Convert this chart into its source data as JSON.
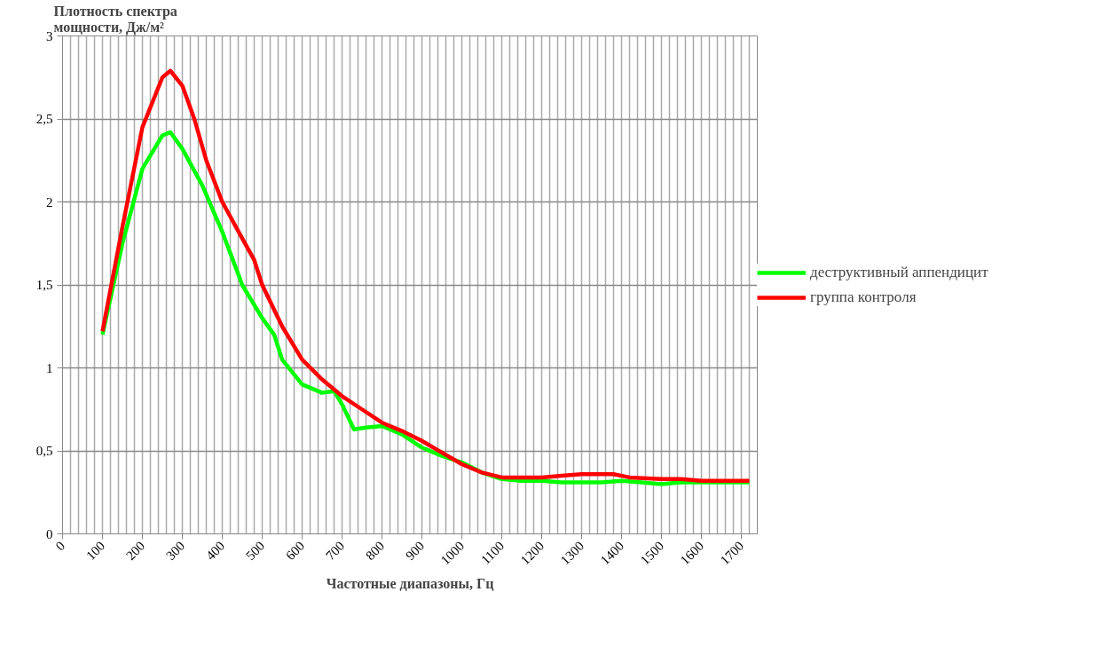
{
  "chart_data": {
    "type": "line",
    "ylabel": "Плотность спектра\nмощности, Дж/м²",
    "xlabel": "Частотные диапазоны, Гц",
    "xlim": [
      0,
      1740
    ],
    "xticks": [
      0,
      100,
      200,
      300,
      400,
      500,
      600,
      700,
      800,
      900,
      1000,
      1100,
      1200,
      1300,
      1400,
      1500,
      1600,
      1700
    ],
    "ylim": [
      0,
      3
    ],
    "yticks": [
      0,
      {
        "value": 0.5,
        "label": "0,5"
      },
      1,
      {
        "value": 1.5,
        "label": "1,5"
      },
      2,
      {
        "value": 2.5,
        "label": "2,5"
      },
      3
    ],
    "grid": true,
    "legend": "right",
    "line_style": "solid",
    "marker": "none",
    "series": [
      {
        "name": "деструктивный аппендицит",
        "color": "#00ff00",
        "x": [
          100,
          150,
          200,
          250,
          270,
          300,
          350,
          400,
          450,
          500,
          530,
          550,
          600,
          650,
          680,
          700,
          730,
          760,
          800,
          850,
          900,
          950,
          1000,
          1050,
          1100,
          1150,
          1200,
          1250,
          1300,
          1350,
          1400,
          1450,
          1500,
          1550,
          1600,
          1650,
          1720
        ],
        "values": [
          1.2,
          1.75,
          2.2,
          2.4,
          2.42,
          2.32,
          2.1,
          1.82,
          1.5,
          1.3,
          1.2,
          1.05,
          0.9,
          0.85,
          0.86,
          0.78,
          0.63,
          0.64,
          0.65,
          0.6,
          0.52,
          0.47,
          0.43,
          0.37,
          0.33,
          0.32,
          0.32,
          0.31,
          0.31,
          0.31,
          0.32,
          0.31,
          0.3,
          0.31,
          0.31,
          0.31,
          0.31
        ]
      },
      {
        "name": "группа контроля",
        "color": "#ff0000",
        "x": [
          100,
          150,
          200,
          250,
          270,
          300,
          330,
          360,
          400,
          450,
          480,
          500,
          550,
          600,
          650,
          700,
          750,
          800,
          850,
          900,
          950,
          1000,
          1050,
          1100,
          1150,
          1200,
          1250,
          1300,
          1350,
          1380,
          1420,
          1500,
          1550,
          1600,
          1720
        ],
        "values": [
          1.22,
          1.85,
          2.45,
          2.75,
          2.79,
          2.7,
          2.5,
          2.25,
          2.0,
          1.78,
          1.65,
          1.5,
          1.25,
          1.05,
          0.93,
          0.83,
          0.75,
          0.67,
          0.62,
          0.56,
          0.49,
          0.42,
          0.37,
          0.34,
          0.34,
          0.34,
          0.35,
          0.36,
          0.36,
          0.36,
          0.34,
          0.33,
          0.33,
          0.32,
          0.32
        ]
      }
    ]
  }
}
